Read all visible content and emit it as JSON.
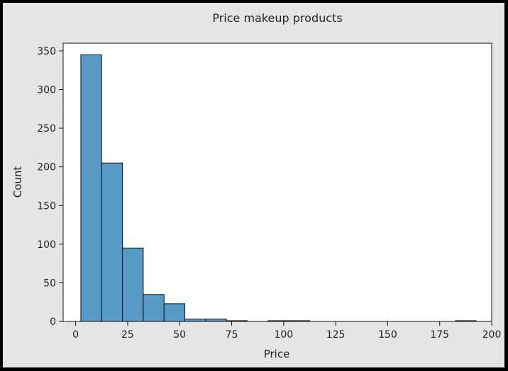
{
  "chart_data": {
    "type": "bar",
    "title": "Price makeup products",
    "xlabel": "Price",
    "ylabel": "Count",
    "xlim": [
      -6,
      200
    ],
    "ylim": [
      0,
      360
    ],
    "xticks": [
      "0",
      "25",
      "50",
      "75",
      "100",
      "125",
      "150",
      "175",
      "200"
    ],
    "xtick_values": [
      0,
      25,
      50,
      75,
      100,
      125,
      150,
      175,
      200
    ],
    "yticks": [
      "0",
      "50",
      "100",
      "150",
      "200",
      "250",
      "300",
      "350"
    ],
    "ytick_values": [
      0,
      50,
      100,
      150,
      200,
      250,
      300,
      350
    ],
    "grid": false,
    "bar_color": "#5799c7",
    "edge_color": "#111111",
    "bins": [
      {
        "x0": 2.5,
        "x1": 12.5,
        "count": 345
      },
      {
        "x0": 12.5,
        "x1": 22.5,
        "count": 205
      },
      {
        "x0": 22.5,
        "x1": 32.5,
        "count": 95
      },
      {
        "x0": 32.5,
        "x1": 42.5,
        "count": 35
      },
      {
        "x0": 42.5,
        "x1": 52.5,
        "count": 23
      },
      {
        "x0": 52.5,
        "x1": 62.5,
        "count": 3
      },
      {
        "x0": 62.5,
        "x1": 72.5,
        "count": 3
      },
      {
        "x0": 72.5,
        "x1": 82.5,
        "count": 1
      },
      {
        "x0": 92.5,
        "x1": 102.5,
        "count": 1
      },
      {
        "x0": 102.5,
        "x1": 112.5,
        "count": 1
      },
      {
        "x0": 182.5,
        "x1": 192.5,
        "count": 1
      }
    ]
  }
}
